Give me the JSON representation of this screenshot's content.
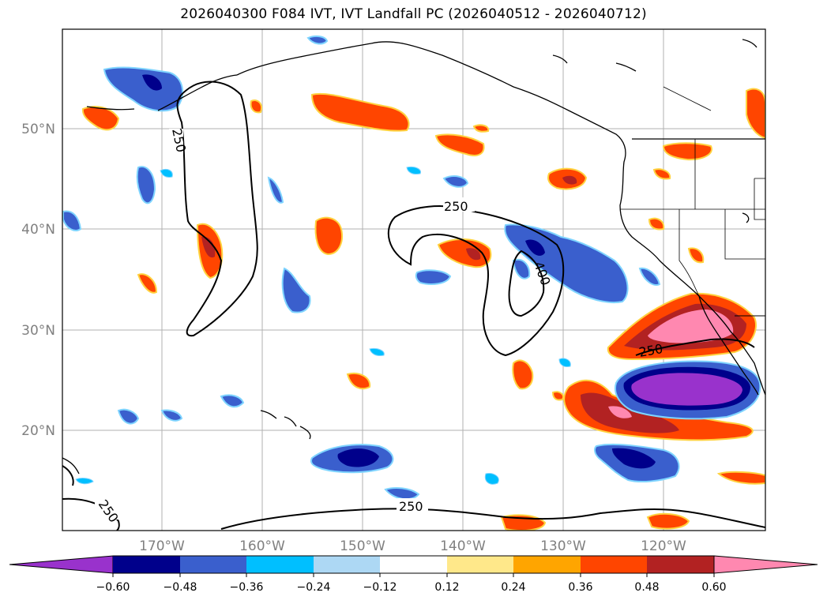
{
  "title": "2026040300 F084 IVT, IVT Landfall PC (2026040512 - 2026040712)",
  "map": {
    "lat_labels": [
      "50°N",
      "40°N",
      "30°N",
      "20°N"
    ],
    "lon_labels": [
      "170°W",
      "160°W",
      "150°W",
      "140°W",
      "130°W",
      "120°W"
    ],
    "contour_labels": [
      "250",
      "250",
      "250",
      "250",
      "250",
      "400"
    ]
  },
  "colorbar": {
    "tick_labels": [
      "−0.60",
      "−0.48",
      "−0.36",
      "−0.24",
      "−0.12",
      "0.12",
      "0.24",
      "0.36",
      "0.48",
      "0.60"
    ],
    "colors": [
      "#9932cc",
      "#00008b",
      "#3a5fcd",
      "#00bfff",
      "#add8f4",
      "#ffffff",
      "#ffe88a",
      "#ffa500",
      "#ff4500",
      "#b22222",
      "#ff88b0"
    ]
  },
  "colors": {
    "grid": "#b0b0b0",
    "coast": "#000000",
    "contour": "#000000"
  }
}
